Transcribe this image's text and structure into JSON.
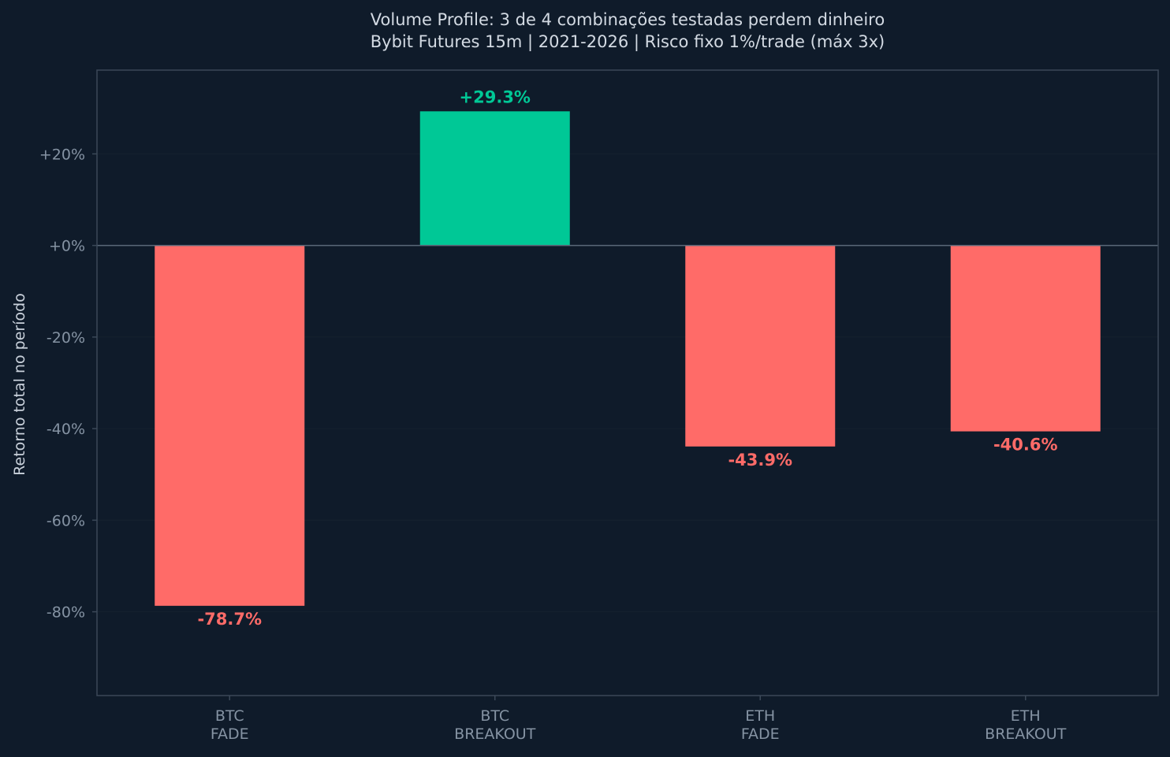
{
  "chart_data": {
    "type": "bar",
    "title": "Volume Profile: 3 de 4 combinações testadas perdem dinheiro",
    "subtitle": "Bybit Futures 15m | 2021-2026 | Risco fixo 1%/trade (máx 3x)",
    "xlabel": "",
    "ylabel": "Retorno total no período",
    "categories": [
      [
        "BTC",
        "FADE"
      ],
      [
        "BTC",
        "BREAKOUT"
      ],
      [
        "ETH",
        "FADE"
      ],
      [
        "ETH",
        "BREAKOUT"
      ]
    ],
    "values": [
      -78.7,
      29.3,
      -43.9,
      -40.6
    ],
    "value_labels": [
      "-78.7%",
      "+29.3%",
      "-43.9%",
      "-40.6%"
    ],
    "yticks": [
      20,
      0,
      -20,
      -40,
      -60,
      -80
    ],
    "ytick_labels": [
      "+20%",
      "+0%",
      "-20%",
      "-40%",
      "-60%",
      "-80%"
    ],
    "ylim": [
      -98.3,
      38.3
    ],
    "grid": true,
    "legend": "none",
    "colors": {
      "background": "#0f1b2a",
      "positive": "#00c896",
      "negative": "#ff6b68",
      "spine": "#3b4858",
      "zero_line": "#5a6878",
      "grid": "#16222f",
      "tick_text": "#8593a3",
      "title_text": "#d3dae3"
    }
  }
}
